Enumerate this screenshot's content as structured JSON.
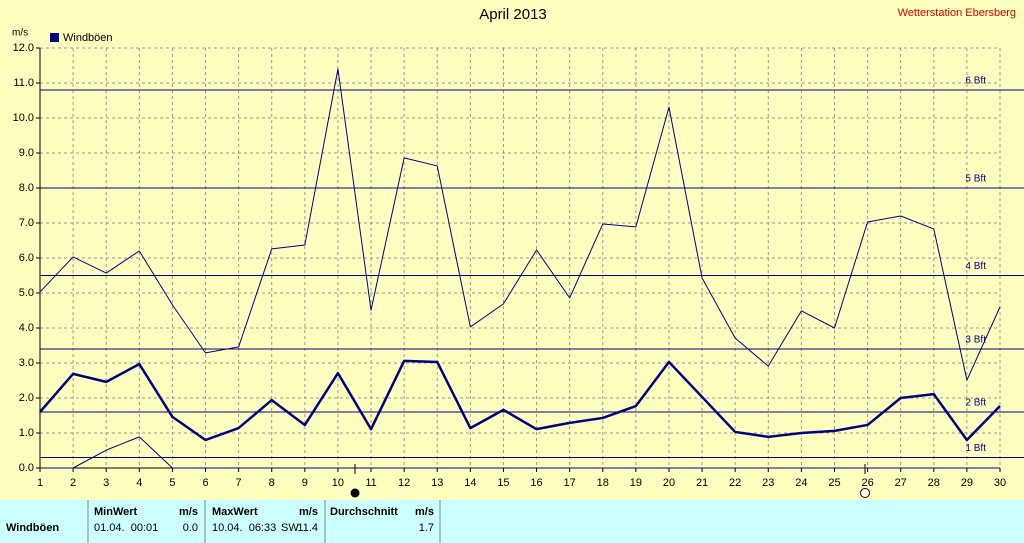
{
  "chart_data": {
    "type": "line",
    "title": "April 2013",
    "subtitle": "Wetterstation Ebersberg",
    "ylabel": "m/s",
    "categories": [
      "1",
      "2",
      "3",
      "4",
      "5",
      "6",
      "7",
      "8",
      "9",
      "10",
      "11",
      "12",
      "13",
      "14",
      "15",
      "16",
      "17",
      "18",
      "19",
      "20",
      "21",
      "22",
      "23",
      "24",
      "25",
      "26",
      "27",
      "28",
      "29",
      "30"
    ],
    "series": [
      {
        "color": "#000080",
        "width": 1,
        "values": [
          5.03,
          6.03,
          5.57,
          6.2,
          4.66,
          3.29,
          3.46,
          6.26,
          6.37,
          11.4,
          4.51,
          8.86,
          8.63,
          4.03,
          4.69,
          6.23,
          4.86,
          6.97,
          6.89,
          10.31,
          5.43,
          3.71,
          2.91,
          4.49,
          4.0,
          7.03,
          7.2,
          6.83,
          2.51,
          4.6
        ]
      },
      {
        "name": "Windböen",
        "color": "#000080",
        "width": 2.5,
        "values": [
          1.6,
          2.69,
          2.46,
          2.97,
          1.46,
          0.8,
          1.14,
          1.94,
          1.23,
          2.71,
          1.11,
          3.06,
          3.03,
          1.14,
          1.66,
          1.11,
          1.29,
          1.43,
          1.77,
          3.03,
          2.03,
          1.03,
          0.89,
          1.0,
          1.06,
          1.23,
          2.0,
          2.11,
          0.8,
          1.77
        ]
      },
      {
        "color": "#000080",
        "width": 1,
        "values": [
          0,
          0,
          0.51,
          0.89,
          0,
          0,
          0,
          0,
          0,
          0,
          0,
          0,
          0,
          0,
          0,
          0,
          0,
          0,
          0,
          0,
          0,
          0,
          0,
          0,
          0,
          0,
          0,
          0,
          0,
          0
        ]
      }
    ],
    "ylim": [
      0,
      12
    ],
    "yticks": [
      {
        "value": 0,
        "label": "0.0"
      },
      {
        "value": 1,
        "label": "1.0"
      },
      {
        "value": 2,
        "label": "2.0"
      },
      {
        "value": 3,
        "label": "3.0"
      },
      {
        "value": 4,
        "label": "4.0"
      },
      {
        "value": 5,
        "label": "5.0"
      },
      {
        "value": 6,
        "label": "6.0"
      },
      {
        "value": 7,
        "label": "7.0"
      },
      {
        "value": 8,
        "label": "8.0"
      },
      {
        "value": 9,
        "label": "9.0"
      },
      {
        "value": 10,
        "label": "10.0"
      },
      {
        "value": 11,
        "label": "11.0"
      },
      {
        "value": 12,
        "label": "12.0"
      }
    ],
    "grid": true,
    "reference_lines": [
      {
        "value": 0.3,
        "label": "1 Bft"
      },
      {
        "value": 1.6,
        "label": "2 Bft"
      },
      {
        "value": 3.4,
        "label": "3 Bft"
      },
      {
        "value": 5.5,
        "label": "4 Bft"
      },
      {
        "value": 8.0,
        "label": "5 Bft"
      },
      {
        "value": 10.8,
        "label": "6 Bft"
      }
    ]
  },
  "summary_table": {
    "columns": [
      {
        "title": "MinWert",
        "unit": "m/s"
      },
      {
        "title": "MaxWert",
        "unit": "m/s"
      },
      {
        "title": "Durchschnitt",
        "unit": "m/s"
      }
    ],
    "row": {
      "label": "Windböen",
      "min_time": "01.04.  00:01",
      "min": "0.0",
      "max_time": "10.04.  06:33",
      "max_dir": "SW",
      "max": "11.4",
      "avg": "1.7"
    }
  }
}
